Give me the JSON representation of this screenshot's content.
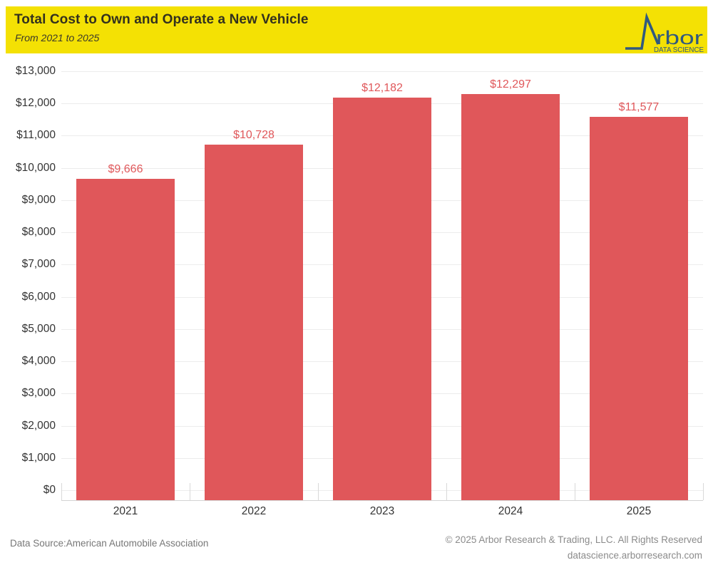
{
  "header": {
    "title": "Total Cost to Own and Operate a New Vehicle",
    "subtitle": "From 2021 to 2025",
    "background_color": "#F4E104",
    "logo": {
      "wordmark": "rbor",
      "tagline": "DATA SCIENCE",
      "color": "#30597F"
    }
  },
  "chart_data": {
    "type": "bar",
    "title": "Total Cost to Own and Operate a New Vehicle",
    "subtitle": "From 2021 to 2025",
    "categories": [
      "2021",
      "2022",
      "2023",
      "2024",
      "2025"
    ],
    "values": [
      9666,
      10728,
      12182,
      12297,
      11577
    ],
    "value_labels": [
      "$9,666",
      "$10,728",
      "$12,182",
      "$12,297",
      "$11,577"
    ],
    "xlabel": "",
    "ylabel": "",
    "ylim": [
      0,
      13000
    ],
    "ytick_step": 1000,
    "ytick_labels": [
      "$0",
      "$1,000",
      "$2,000",
      "$3,000",
      "$4,000",
      "$5,000",
      "$6,000",
      "$7,000",
      "$8,000",
      "$9,000",
      "$10,000",
      "$11,000",
      "$12,000",
      "$13,000"
    ],
    "grid": true,
    "legend": false,
    "bar_color": "#E0575A",
    "value_label_color": "#E0575A",
    "axis_label_color": "#333333"
  },
  "footer": {
    "source": "Data Source:American Automobile Association",
    "copyright": "© 2025 Arbor Research & Trading, LLC. All Rights Reserved",
    "website": "datascience.arborresearch.com"
  }
}
